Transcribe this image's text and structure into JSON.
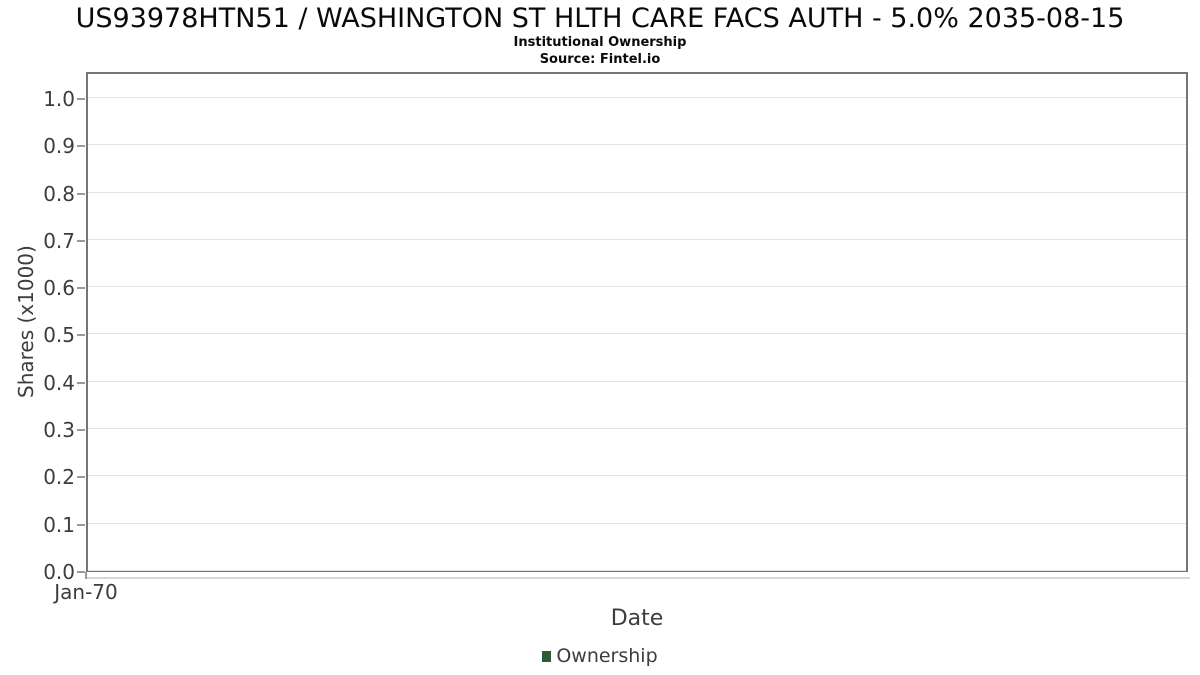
{
  "chart_data": {
    "type": "line",
    "title": "US93978HTN51 / WASHINGTON ST HLTH CARE FACS AUTH - 5.0% 2035-08-15",
    "subtitle": "Institutional Ownership",
    "source": "Source: Fintel.io",
    "xlabel": "Date",
    "ylabel": "Shares (x1000)",
    "x": [],
    "series": [
      {
        "name": "Ownership",
        "color": "#2d5c34",
        "values": []
      }
    ],
    "yticks": [
      "0.0",
      "0.1",
      "0.2",
      "0.3",
      "0.4",
      "0.5",
      "0.6",
      "0.7",
      "0.8",
      "0.9",
      "1.0"
    ],
    "xticks": [
      "Jan-70"
    ],
    "ylim": [
      0,
      1.057
    ],
    "grid": true,
    "legend_position": "bottom",
    "note": "empty chart - no data points plotted"
  },
  "colors": {
    "plot_border": "#767676",
    "gridline": "#e2e2e2",
    "tick_mark": "#9b9b9b",
    "text_primary": "#0a0a0a",
    "text_axis": "#3d3d3d",
    "legend_marker": "#2d5c34"
  }
}
